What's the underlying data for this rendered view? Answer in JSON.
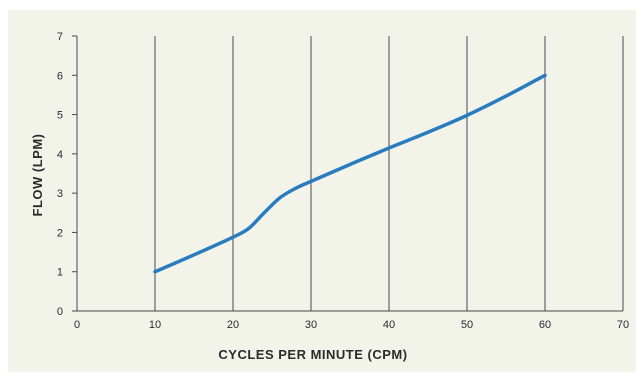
{
  "chart_data": {
    "type": "line",
    "xlabel": "CYCLES PER MINUTE (CPM)",
    "ylabel": "FLOW (LPM)",
    "xlim": [
      0,
      70
    ],
    "ylim": [
      0,
      7
    ],
    "xticks": [
      0,
      10,
      20,
      30,
      40,
      50,
      60,
      70
    ],
    "yticks": [
      0,
      1,
      2,
      3,
      4,
      5,
      6,
      7
    ],
    "grid": {
      "vertical": true,
      "horizontal": false
    },
    "legend": "none",
    "series": [
      {
        "color": "#2a7bbf",
        "points": [
          [
            10,
            1.0
          ],
          [
            15,
            1.43
          ],
          [
            20,
            1.88
          ],
          [
            22,
            2.1
          ],
          [
            24,
            2.5
          ],
          [
            26,
            2.88
          ],
          [
            28,
            3.12
          ],
          [
            30,
            3.3
          ],
          [
            35,
            3.73
          ],
          [
            40,
            4.15
          ],
          [
            45,
            4.55
          ],
          [
            50,
            4.98
          ],
          [
            55,
            5.47
          ],
          [
            60,
            6.0
          ]
        ]
      }
    ],
    "colors": {
      "background": "#f2f4ea",
      "grid": "#4a4a4a",
      "axis": "#4a4a4a",
      "text": "#2b2b2b"
    }
  }
}
